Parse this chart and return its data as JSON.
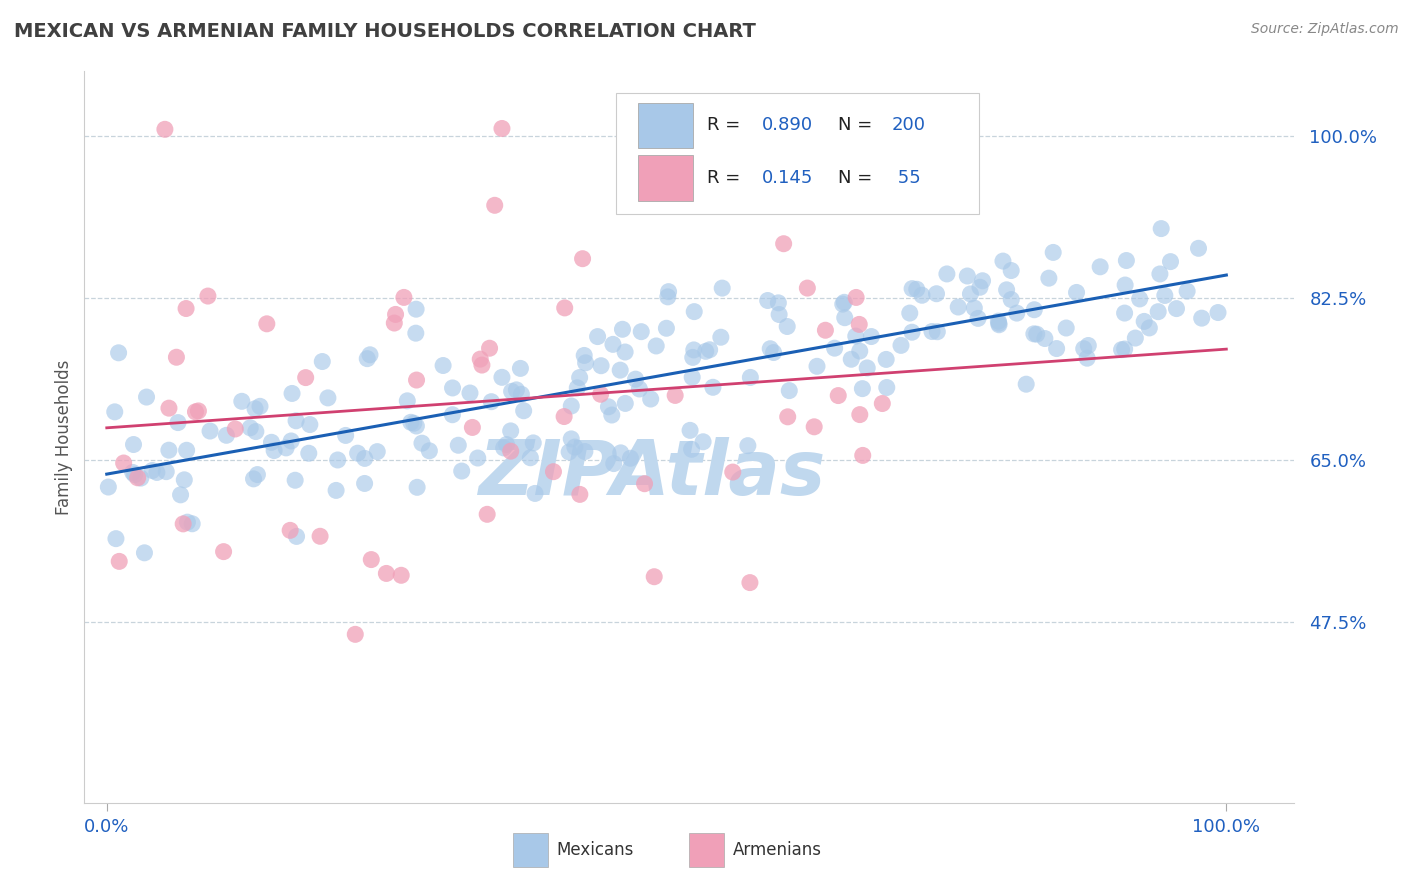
{
  "title": "MEXICAN VS ARMENIAN FAMILY HOUSEHOLDS CORRELATION CHART",
  "source": "Source: ZipAtlas.com",
  "ylabel": "Family Households",
  "yticks": [
    0.475,
    0.65,
    0.825,
    1.0
  ],
  "ytick_labels": [
    "47.5%",
    "65.0%",
    "82.5%",
    "100.0%"
  ],
  "xlim": [
    -0.02,
    1.06
  ],
  "ylim": [
    0.28,
    1.07
  ],
  "blue_R": 0.89,
  "blue_N": 200,
  "pink_R": 0.145,
  "pink_N": 55,
  "blue_color": "#a8c8e8",
  "blue_line_color": "#1a5fb4",
  "pink_color": "#f0a0b8",
  "pink_line_color": "#d04070",
  "title_color": "#404040",
  "axis_label_color": "#2060c0",
  "watermark": "ZIPAtlas",
  "watermark_color": "#c0d8ee",
  "background_color": "#ffffff",
  "grid_color": "#c8d4dc",
  "blue_intercept": 0.635,
  "blue_slope": 0.215,
  "pink_intercept": 0.685,
  "pink_slope": 0.085
}
